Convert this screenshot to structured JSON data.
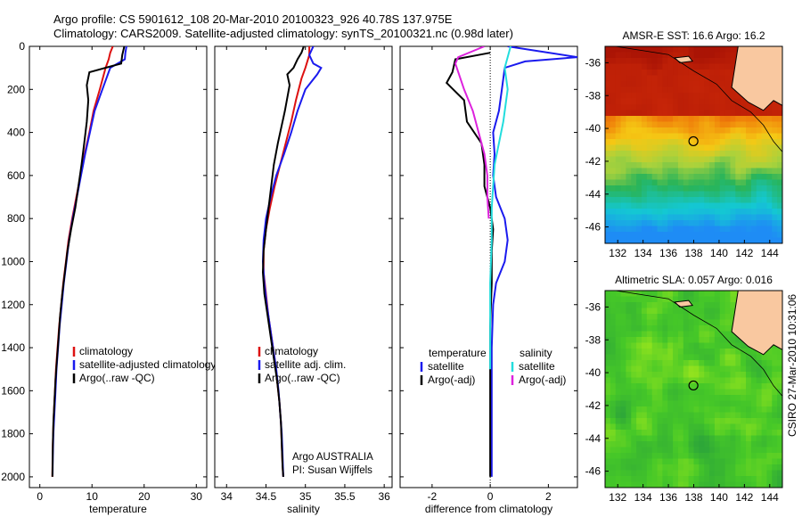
{
  "header": {
    "line1": "Argo profile: CS 5901612_108 20-Mar-2010 20100323_926 40.78S 137.975E",
    "line2": "Climatology: CARS2009. Satellite-adjusted climatology: synTS_20100321.nc (0.98d later)"
  },
  "credit": "CSIRO 27-Mar-2010 10:31:06",
  "attribution": {
    "line1": "Argo AUSTRALIA",
    "line2": "PI: Susan Wijffels"
  },
  "colors": {
    "climatology": "#dd1111",
    "satellite": "#1a1aee",
    "argo": "#000000",
    "sal_satellite": "#22dddd",
    "sal_argo": "#dd22dd"
  },
  "chart_data": [
    {
      "type": "line",
      "id": "temperature",
      "xlabel": "temperature",
      "ylabel": "",
      "xlim": [
        -2,
        32
      ],
      "ylim": [
        2050,
        0
      ],
      "y_inverted": true,
      "xticks": [
        0,
        10,
        20,
        30
      ],
      "yticks": [
        0,
        200,
        400,
        600,
        800,
        1000,
        1200,
        1400,
        1600,
        1800,
        2000
      ],
      "legend": [
        "climatology",
        "satellite-adjusted climatology",
        "Argo(..raw -QC)"
      ],
      "series": [
        {
          "name": "climatology",
          "color": "red",
          "points": [
            [
              14,
              0
            ],
            [
              13.5,
              30
            ],
            [
              13.2,
              60
            ],
            [
              12.6,
              100
            ],
            [
              11.5,
              200
            ],
            [
              10.3,
              300
            ],
            [
              9.5,
              400
            ],
            [
              8.6,
              500
            ],
            [
              7.8,
              600
            ],
            [
              7.0,
              700
            ],
            [
              6.2,
              800
            ],
            [
              5.5,
              900
            ],
            [
              5.0,
              1000
            ],
            [
              4.5,
              1100
            ],
            [
              4.1,
              1200
            ],
            [
              3.7,
              1300
            ],
            [
              3.4,
              1400
            ],
            [
              3.1,
              1500
            ],
            [
              2.9,
              1600
            ],
            [
              2.7,
              1700
            ],
            [
              2.55,
              1800
            ],
            [
              2.45,
              1900
            ],
            [
              2.4,
              2000
            ]
          ]
        },
        {
          "name": "satellite-adjusted climatology",
          "color": "blue",
          "points": [
            [
              16.6,
              0
            ],
            [
              16.4,
              30
            ],
            [
              16.3,
              60
            ],
            [
              13.5,
              100
            ],
            [
              12,
              200
            ],
            [
              10.5,
              300
            ],
            [
              9.6,
              400
            ],
            [
              8.7,
              500
            ],
            [
              7.9,
              600
            ],
            [
              7.1,
              700
            ],
            [
              6.3,
              800
            ],
            [
              5.6,
              900
            ],
            [
              5.1,
              1000
            ],
            [
              4.6,
              1100
            ],
            [
              4.2,
              1200
            ],
            [
              3.8,
              1300
            ],
            [
              3.5,
              1400
            ],
            [
              3.2,
              1500
            ],
            [
              3.0,
              1600
            ],
            [
              2.8,
              1700
            ],
            [
              2.6,
              1800
            ],
            [
              2.5,
              1900
            ],
            [
              2.45,
              1990
            ]
          ]
        },
        {
          "name": "Argo(..raw -QC)",
          "color": "black",
          "points": [
            [
              16.2,
              0
            ],
            [
              15.8,
              40
            ],
            [
              15.6,
              80
            ],
            [
              9.5,
              120
            ],
            [
              9,
              180
            ],
            [
              9.3,
              250
            ],
            [
              9,
              350
            ],
            [
              8.5,
              450
            ],
            [
              8,
              550
            ],
            [
              7.4,
              650
            ],
            [
              6.8,
              750
            ],
            [
              6,
              850
            ],
            [
              5.3,
              950
            ],
            [
              4.8,
              1050
            ],
            [
              4.3,
              1150
            ],
            [
              3.9,
              1250
            ],
            [
              3.6,
              1350
            ],
            [
              3.3,
              1450
            ],
            [
              3,
              1550
            ],
            [
              2.8,
              1650
            ],
            [
              2.6,
              1750
            ],
            [
              2.5,
              1850
            ],
            [
              2.45,
              1950
            ],
            [
              2.4,
              2000
            ]
          ]
        }
      ]
    },
    {
      "type": "line",
      "id": "salinity",
      "xlabel": "salinity",
      "xlim": [
        33.85,
        36.1
      ],
      "ylim": [
        2050,
        0
      ],
      "y_inverted": true,
      "xticks": [
        34,
        34.5,
        35,
        35.5,
        36
      ],
      "xticklabels": [
        "34",
        "34.5",
        "35",
        "35.5",
        "36"
      ],
      "legend": [
        "climatology",
        "satellite adj. clim.",
        "Argo(..raw -QC)"
      ],
      "series": [
        {
          "name": "climatology",
          "color": "red",
          "points": [
            [
              35.05,
              0
            ],
            [
              35.05,
              40
            ],
            [
              35.0,
              100
            ],
            [
              34.95,
              150
            ],
            [
              34.88,
              250
            ],
            [
              34.82,
              350
            ],
            [
              34.75,
              450
            ],
            [
              34.68,
              550
            ],
            [
              34.61,
              650
            ],
            [
              34.55,
              750
            ],
            [
              34.5,
              850
            ],
            [
              34.47,
              950
            ],
            [
              34.47,
              1050
            ],
            [
              34.5,
              1150
            ],
            [
              34.53,
              1250
            ],
            [
              34.57,
              1350
            ],
            [
              34.61,
              1450
            ],
            [
              34.64,
              1550
            ],
            [
              34.67,
              1650
            ],
            [
              34.69,
              1750
            ],
            [
              34.7,
              1850
            ],
            [
              34.71,
              1950
            ],
            [
              34.72,
              2000
            ]
          ]
        },
        {
          "name": "satellite adj. clim.",
          "color": "blue",
          "points": [
            [
              35.1,
              0
            ],
            [
              35.05,
              40
            ],
            [
              35.1,
              80
            ],
            [
              35.2,
              100
            ],
            [
              35.15,
              130
            ],
            [
              35.0,
              200
            ],
            [
              34.9,
              300
            ],
            [
              34.82,
              400
            ],
            [
              34.73,
              500
            ],
            [
              34.63,
              600
            ],
            [
              34.56,
              700
            ],
            [
              34.5,
              800
            ],
            [
              34.47,
              900
            ],
            [
              34.46,
              1000
            ],
            [
              34.48,
              1100
            ],
            [
              34.51,
              1200
            ],
            [
              34.55,
              1300
            ],
            [
              34.59,
              1400
            ],
            [
              34.63,
              1500
            ],
            [
              34.66,
              1600
            ],
            [
              34.68,
              1700
            ],
            [
              34.7,
              1800
            ],
            [
              34.71,
              1900
            ],
            [
              34.72,
              2000
            ]
          ]
        },
        {
          "name": "Argo(..raw -QC)",
          "color": "black",
          "points": [
            [
              34.98,
              0
            ],
            [
              34.95,
              30
            ],
            [
              34.9,
              60
            ],
            [
              34.85,
              100
            ],
            [
              34.77,
              130
            ],
            [
              34.8,
              180
            ],
            [
              34.74,
              300
            ],
            [
              34.65,
              450
            ],
            [
              34.6,
              550
            ],
            [
              34.55,
              700
            ],
            [
              34.5,
              850
            ],
            [
              34.47,
              950
            ],
            [
              34.46,
              1050
            ],
            [
              34.48,
              1150
            ],
            [
              34.52,
              1250
            ],
            [
              34.56,
              1350
            ],
            [
              34.6,
              1450
            ],
            [
              34.64,
              1550
            ],
            [
              34.67,
              1650
            ],
            [
              34.69,
              1750
            ],
            [
              34.7,
              1850
            ],
            [
              34.71,
              1950
            ],
            [
              34.72,
              2000
            ]
          ]
        }
      ]
    },
    {
      "type": "line",
      "id": "difference",
      "xlabel": "difference from climatology",
      "xlim": [
        -3.1,
        3
      ],
      "ylim": [
        2050,
        0
      ],
      "y_inverted": true,
      "xticks": [
        -2,
        0,
        2
      ],
      "legend_titles": [
        "temperature",
        "salinity"
      ],
      "legend": [
        "satellite",
        "Argo(-adj)",
        "satellite",
        "Argo(-adj)"
      ],
      "series": [
        {
          "name": "temperature satellite",
          "color": "blue",
          "points": [
            [
              0.6,
              0
            ],
            [
              3,
              50
            ],
            [
              1.2,
              70
            ],
            [
              0.5,
              100
            ],
            [
              0.4,
              200
            ],
            [
              0.3,
              300
            ],
            [
              0.1,
              400
            ],
            [
              0.15,
              500
            ],
            [
              0.1,
              600
            ],
            [
              0.2,
              700
            ],
            [
              0.5,
              800
            ],
            [
              0.6,
              900
            ],
            [
              0.5,
              1000
            ],
            [
              0.2,
              1100
            ],
            [
              0.1,
              1200
            ],
            [
              0.05,
              1400
            ],
            [
              0.05,
              1600
            ],
            [
              0.05,
              1800
            ],
            [
              0.05,
              2000
            ]
          ]
        },
        {
          "name": "temperature Argo(-adj)",
          "color": "black",
          "points": [
            [
              0,
              30
            ],
            [
              -1.2,
              60
            ],
            [
              -1.3,
              120
            ],
            [
              -1.5,
              170
            ],
            [
              -0.9,
              250
            ],
            [
              -0.8,
              350
            ],
            [
              -0.3,
              450
            ],
            [
              -0.2,
              550
            ],
            [
              -0.2,
              650
            ],
            [
              0,
              750
            ],
            [
              0.1,
              850
            ],
            [
              0.05,
              950
            ],
            [
              0.05,
              1100
            ],
            [
              0,
              1300
            ],
            [
              0,
              1500
            ],
            [
              0,
              1700
            ],
            [
              0,
              1900
            ],
            [
              0,
              2000
            ]
          ]
        },
        {
          "name": "salinity satellite",
          "color": "cyan",
          "points": [
            [
              0.7,
              0
            ],
            [
              0.6,
              50
            ],
            [
              0.5,
              100
            ],
            [
              0.6,
              200
            ],
            [
              0.45,
              350
            ],
            [
              0.3,
              450
            ],
            [
              0.15,
              550
            ],
            [
              0.1,
              650
            ],
            [
              0.05,
              750
            ],
            [
              0.05,
              900
            ],
            [
              0,
              1100
            ],
            [
              0,
              1300
            ],
            [
              0,
              1500
            ]
          ]
        },
        {
          "name": "salinity Argo(-adj)",
          "color": "magenta",
          "points": [
            [
              -0.2,
              0
            ],
            [
              -1.1,
              50
            ],
            [
              -1.2,
              80
            ],
            [
              -0.9,
              200
            ],
            [
              -0.6,
              300
            ],
            [
              -0.4,
              400
            ],
            [
              -0.2,
              500
            ],
            [
              -0.1,
              600
            ],
            [
              -0.1,
              700
            ],
            [
              -0.05,
              800
            ]
          ]
        }
      ]
    },
    {
      "type": "heatmap",
      "id": "sst-map",
      "title": "AMSR-E SST: 16.6 Argo: 16.2",
      "xticks": [
        132,
        134,
        136,
        138,
        140,
        142,
        144
      ],
      "yticks": [
        -36,
        -38,
        -40,
        -42,
        -44,
        -46
      ],
      "xlim": [
        131,
        145
      ],
      "ylim": [
        -47,
        -35
      ],
      "float_position": {
        "lon": 137.975,
        "lat": -40.78
      }
    },
    {
      "type": "heatmap",
      "id": "sla-map",
      "title": "Altimetric SLA: 0.057 Argo: 0.016",
      "xticks": [
        132,
        134,
        136,
        138,
        140,
        142,
        144
      ],
      "yticks": [
        -36,
        -38,
        -40,
        -42,
        -44,
        -46
      ],
      "xlim": [
        131,
        145
      ],
      "ylim": [
        -47,
        -35
      ],
      "float_position": {
        "lon": 137.975,
        "lat": -40.78
      }
    }
  ]
}
